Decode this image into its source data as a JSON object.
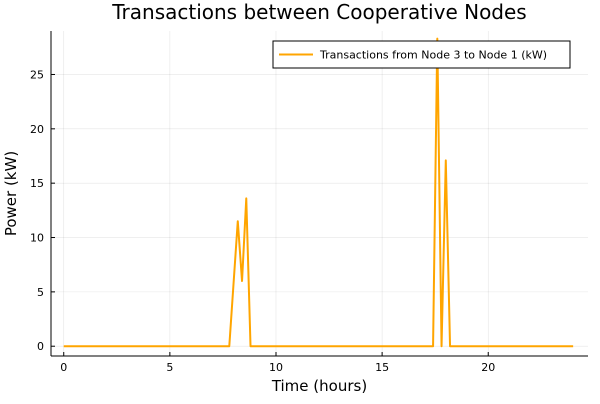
{
  "chart_data": {
    "type": "line",
    "title": "Transactions between Cooperative Nodes",
    "xlabel": "Time (hours)",
    "ylabel": "Power (kW)",
    "xlim": [
      -0.6,
      24.7
    ],
    "ylim": [
      -0.9,
      29.0
    ],
    "x_ticks": [
      0,
      5,
      10,
      15,
      20
    ],
    "y_ticks": [
      0,
      5,
      10,
      15,
      20,
      25
    ],
    "grid": true,
    "legend_position": "top-right",
    "series": [
      {
        "name": "Transactions from Node 3 to Node 1 (kW)",
        "color": "#ffa500",
        "x": [
          0,
          7.8,
          8.2,
          8.4,
          8.6,
          8.8,
          17.4,
          17.6,
          17.8,
          18.0,
          18.2,
          24
        ],
        "y": [
          0,
          0,
          11.5,
          6.0,
          13.6,
          0,
          0,
          28.3,
          0,
          17.1,
          0,
          0
        ]
      }
    ]
  }
}
